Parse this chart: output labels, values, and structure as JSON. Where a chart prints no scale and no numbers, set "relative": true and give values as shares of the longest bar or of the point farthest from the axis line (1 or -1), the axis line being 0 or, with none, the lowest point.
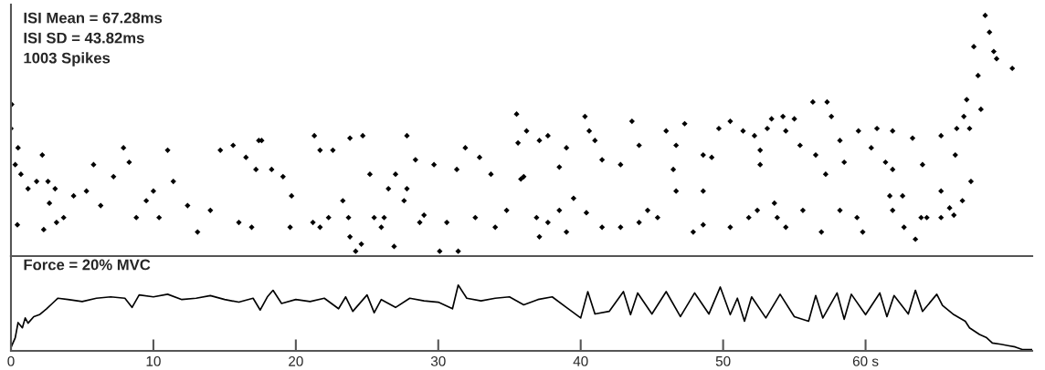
{
  "chart_data": [
    {
      "type": "scatter",
      "relative": true,
      "xlim": [
        0,
        71.7
      ],
      "tick_labels": false,
      "marker": "diamond",
      "grid": false,
      "legend": false,
      "annotations": [
        "ISI Mean = 67.28ms",
        "ISI SD = 43.82ms",
        "1003 Spikes"
      ],
      "series": [
        {
          "color": "#000000",
          "x": [
            0.05,
            0,
            0.5,
            0.3,
            0.7,
            0.45,
            2.2,
            1.2,
            1.8,
            2.6,
            3.1,
            3.7,
            2.7,
            2.3,
            3.2,
            4.4,
            5.3,
            5.8,
            6.3,
            7.9,
            7.2,
            8.3,
            8.8,
            9.5,
            10,
            10.4,
            11,
            11.4,
            12.4,
            13.1,
            14.7,
            15.6,
            16.5,
            17.4,
            17.2,
            14,
            16,
            16.9,
            17.6,
            18.3,
            19.1,
            19.7,
            19.6,
            21.3,
            21.7,
            22.6,
            23.8,
            24.7,
            23.7,
            23.8,
            24.2,
            24.6,
            23.3,
            25.2,
            25.5,
            27,
            26,
            26.9,
            26.5,
            27.8,
            27.8,
            27.6,
            28.4,
            29.0,
            29.7,
            30.1,
            30.6,
            31.3,
            31.4,
            31.9,
            32.9,
            33.7,
            34.0,
            34.8,
            35.5,
            35.6,
            35.8,
            36.0,
            36.2,
            36.9,
            37.1,
            37.7,
            38.5,
            38.5,
            39.0,
            39.5,
            40.3,
            40.4,
            40.6,
            41.0,
            41.5,
            42.8,
            42.8,
            43.6,
            44.1,
            44.7,
            46.0,
            46.7,
            47.3,
            46.5,
            46.7,
            48.6,
            48.6,
            49.2,
            49.7,
            48.6,
            50.5,
            51.4,
            52.2,
            52.6,
            52.4,
            53.1,
            53.4,
            53.6,
            52.6,
            53.8,
            54.2,
            54.4,
            55.0,
            55.4,
            56.3,
            56.5,
            57.2,
            57.3,
            57.6,
            58.2,
            58.5,
            59.5,
            59.4,
            60.4,
            60.8,
            61.4,
            61.9,
            61.9,
            61.9,
            63.3,
            63.5,
            64.0,
            64.3,
            63.9,
            65.3,
            65.3,
            65.9,
            66.3,
            66.4,
            66.8,
            66.9,
            67.1,
            67.3,
            67.4,
            67.6,
            67.9,
            68.1,
            68.4,
            68.7,
            69.0,
            69.2,
            70.3,
            54.4,
            55.6,
            56.9,
            58.2,
            59.8,
            61.7,
            62.6,
            62.7,
            65.3,
            66.2,
            37.1,
            37.7,
            39.0,
            41.5,
            44.1,
            45.4,
            47.9,
            50.5,
            51.8,
            21.2,
            21.7,
            22.3,
            26.2,
            28.7,
            32.6
          ],
          "values": [
            0.63,
            0.53,
            0.45,
            0.38,
            0.34,
            0.13,
            0.42,
            0.28,
            0.31,
            0.31,
            0.28,
            0.16,
            0.22,
            0.11,
            0.14,
            0.25,
            0.27,
            0.38,
            0.21,
            0.45,
            0.33,
            0.39,
            0.16,
            0.23,
            0.27,
            0.16,
            0.44,
            0.31,
            0.21,
            0.1,
            0.44,
            0.46,
            0.41,
            0.48,
            0.36,
            0.19,
            0.14,
            0.12,
            0.48,
            0.36,
            0.33,
            0.25,
            0.12,
            0.5,
            0.44,
            0.44,
            0.49,
            0.5,
            0.16,
            0.08,
            0.02,
            0.05,
            0.23,
            0.34,
            0.16,
            0.34,
            0.12,
            0.04,
            0.28,
            0.5,
            0.28,
            0.23,
            0.4,
            0.17,
            0.38,
            0.02,
            0.14,
            0.36,
            0.02,
            0.45,
            0.41,
            0.34,
            0.12,
            0.19,
            0.59,
            0.47,
            0.32,
            0.33,
            0.52,
            0.16,
            0.48,
            0.5,
            0.19,
            0.37,
            0.45,
            0.24,
            0.58,
            0.18,
            0.52,
            0.48,
            0.4,
            0.38,
            0.12,
            0.56,
            0.46,
            0.19,
            0.52,
            0.46,
            0.55,
            0.36,
            0.27,
            0.13,
            0.42,
            0.41,
            0.53,
            0.27,
            0.56,
            0.52,
            0.5,
            0.44,
            0.19,
            0.53,
            0.57,
            0.22,
            0.38,
            0.16,
            0.58,
            0.52,
            0.57,
            0.46,
            0.64,
            0.42,
            0.34,
            0.64,
            0.58,
            0.48,
            0.39,
            0.52,
            0.16,
            0.45,
            0.53,
            0.39,
            0.52,
            0.19,
            0.36,
            0.49,
            0.07,
            0.38,
            0.16,
            0.16,
            0.5,
            0.27,
            0.2,
            0.42,
            0.53,
            0.23,
            0.58,
            0.65,
            0.53,
            0.31,
            0.87,
            0.75,
            0.61,
            1.0,
            0.93,
            0.85,
            0.82,
            0.78,
            0.12,
            0.19,
            0.1,
            0.19,
            0.1,
            0.25,
            0.25,
            0.12,
            0.16,
            0.17,
            0.08,
            0.14,
            0.1,
            0.12,
            0.14,
            0.16,
            0.1,
            0.12,
            0.16,
            0.14,
            0.12,
            0.16,
            0.16,
            0.14,
            0.16
          ]
        }
      ]
    },
    {
      "type": "line",
      "relative": true,
      "xlim": [
        0,
        71.7
      ],
      "tick_labels": "x",
      "marker": "none",
      "line_style": "solid",
      "grid": false,
      "legend": false,
      "xticks": [
        0,
        10,
        20,
        30,
        40,
        50,
        {
          "value": 60,
          "label": "60 s"
        }
      ],
      "annotations": [
        "Force = 20% MVC"
      ],
      "series": [
        {
          "color": "#000000",
          "x": [
            0,
            0.3,
            0.5,
            0.8,
            1.0,
            1.2,
            1.6,
            2.0,
            2.5,
            2.9,
            3.3,
            4,
            5,
            6,
            7,
            8,
            8.5,
            9,
            10,
            11,
            12,
            13,
            14,
            15,
            16,
            17,
            17.5,
            18,
            18.4,
            19,
            20,
            21,
            22,
            23,
            23.5,
            24,
            25,
            25.5,
            26,
            27,
            28,
            29,
            30,
            31,
            31.4,
            32,
            33,
            34,
            35,
            36,
            37,
            38,
            39,
            40,
            40.5,
            41,
            42,
            43,
            43.5,
            44,
            45,
            46,
            47,
            48,
            49,
            49.8,
            50.5,
            51,
            51.5,
            52,
            53,
            54,
            55,
            56,
            56.5,
            57,
            58,
            58.5,
            59,
            60,
            61,
            61.5,
            62,
            63,
            63.5,
            64,
            65,
            65.4,
            66.2,
            67,
            67.3,
            68,
            68.5,
            68.9,
            69.5,
            70,
            70.5,
            71,
            71.7
          ],
          "values": [
            0.05,
            0.2,
            0.43,
            0.35,
            0.5,
            0.42,
            0.52,
            0.55,
            0.64,
            0.72,
            0.8,
            0.78,
            0.75,
            0.8,
            0.82,
            0.8,
            0.66,
            0.85,
            0.82,
            0.86,
            0.78,
            0.8,
            0.84,
            0.78,
            0.74,
            0.8,
            0.62,
            0.82,
            0.92,
            0.72,
            0.78,
            0.75,
            0.8,
            0.64,
            0.82,
            0.6,
            0.85,
            0.58,
            0.78,
            0.66,
            0.8,
            0.76,
            0.74,
            0.64,
            1.0,
            0.8,
            0.76,
            0.8,
            0.82,
            0.7,
            0.78,
            0.82,
            0.66,
            0.5,
            0.9,
            0.56,
            0.6,
            0.9,
            0.55,
            0.88,
            0.56,
            0.9,
            0.52,
            0.88,
            0.56,
            0.97,
            0.55,
            0.8,
            0.45,
            0.82,
            0.5,
            0.86,
            0.52,
            0.45,
            0.84,
            0.5,
            0.88,
            0.48,
            0.86,
            0.55,
            0.88,
            0.52,
            0.84,
            0.56,
            0.92,
            0.6,
            0.86,
            0.69,
            0.55,
            0.45,
            0.35,
            0.25,
            0.2,
            0.12,
            0.1,
            0.08,
            0.06,
            0.02,
            0.02
          ]
        }
      ]
    }
  ]
}
